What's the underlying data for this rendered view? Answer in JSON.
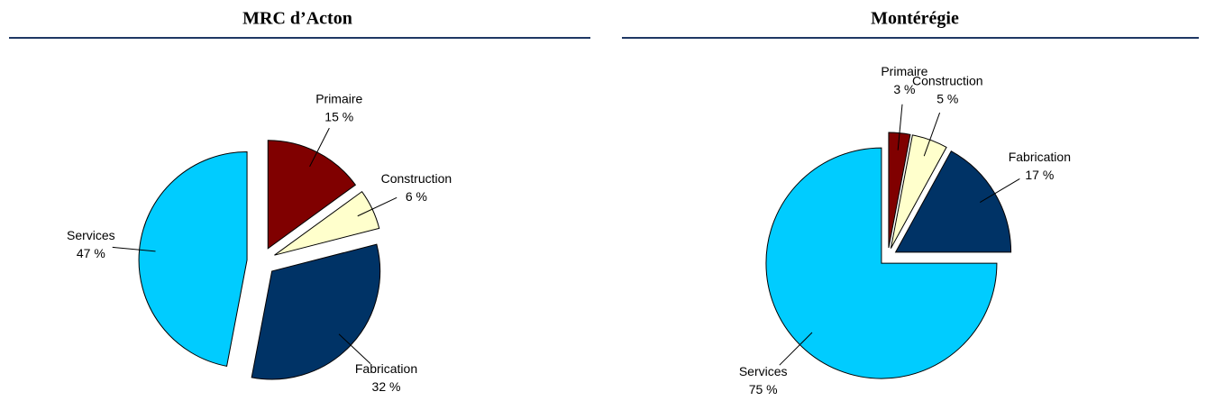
{
  "chart_data": [
    {
      "type": "pie",
      "title": "MRC d’Acton",
      "categories": [
        "Primaire",
        "Construction",
        "Fabrication",
        "Services"
      ],
      "values": [
        15,
        6,
        32,
        47
      ],
      "value_labels": [
        "15 %",
        "6 %",
        "32 %",
        "47 %"
      ],
      "colors": [
        "#800000",
        "#ffffcc",
        "#003366",
        "#00ccff"
      ]
    },
    {
      "type": "pie",
      "title": "Montérégie",
      "categories": [
        "Primaire",
        "Construction",
        "Fabrication",
        "Services"
      ],
      "values": [
        3,
        5,
        17,
        75
      ],
      "value_labels": [
        "3 %",
        "5 %",
        "17 %",
        "75 %"
      ],
      "colors": [
        "#800000",
        "#ffffcc",
        "#003366",
        "#00ccff"
      ]
    }
  ]
}
